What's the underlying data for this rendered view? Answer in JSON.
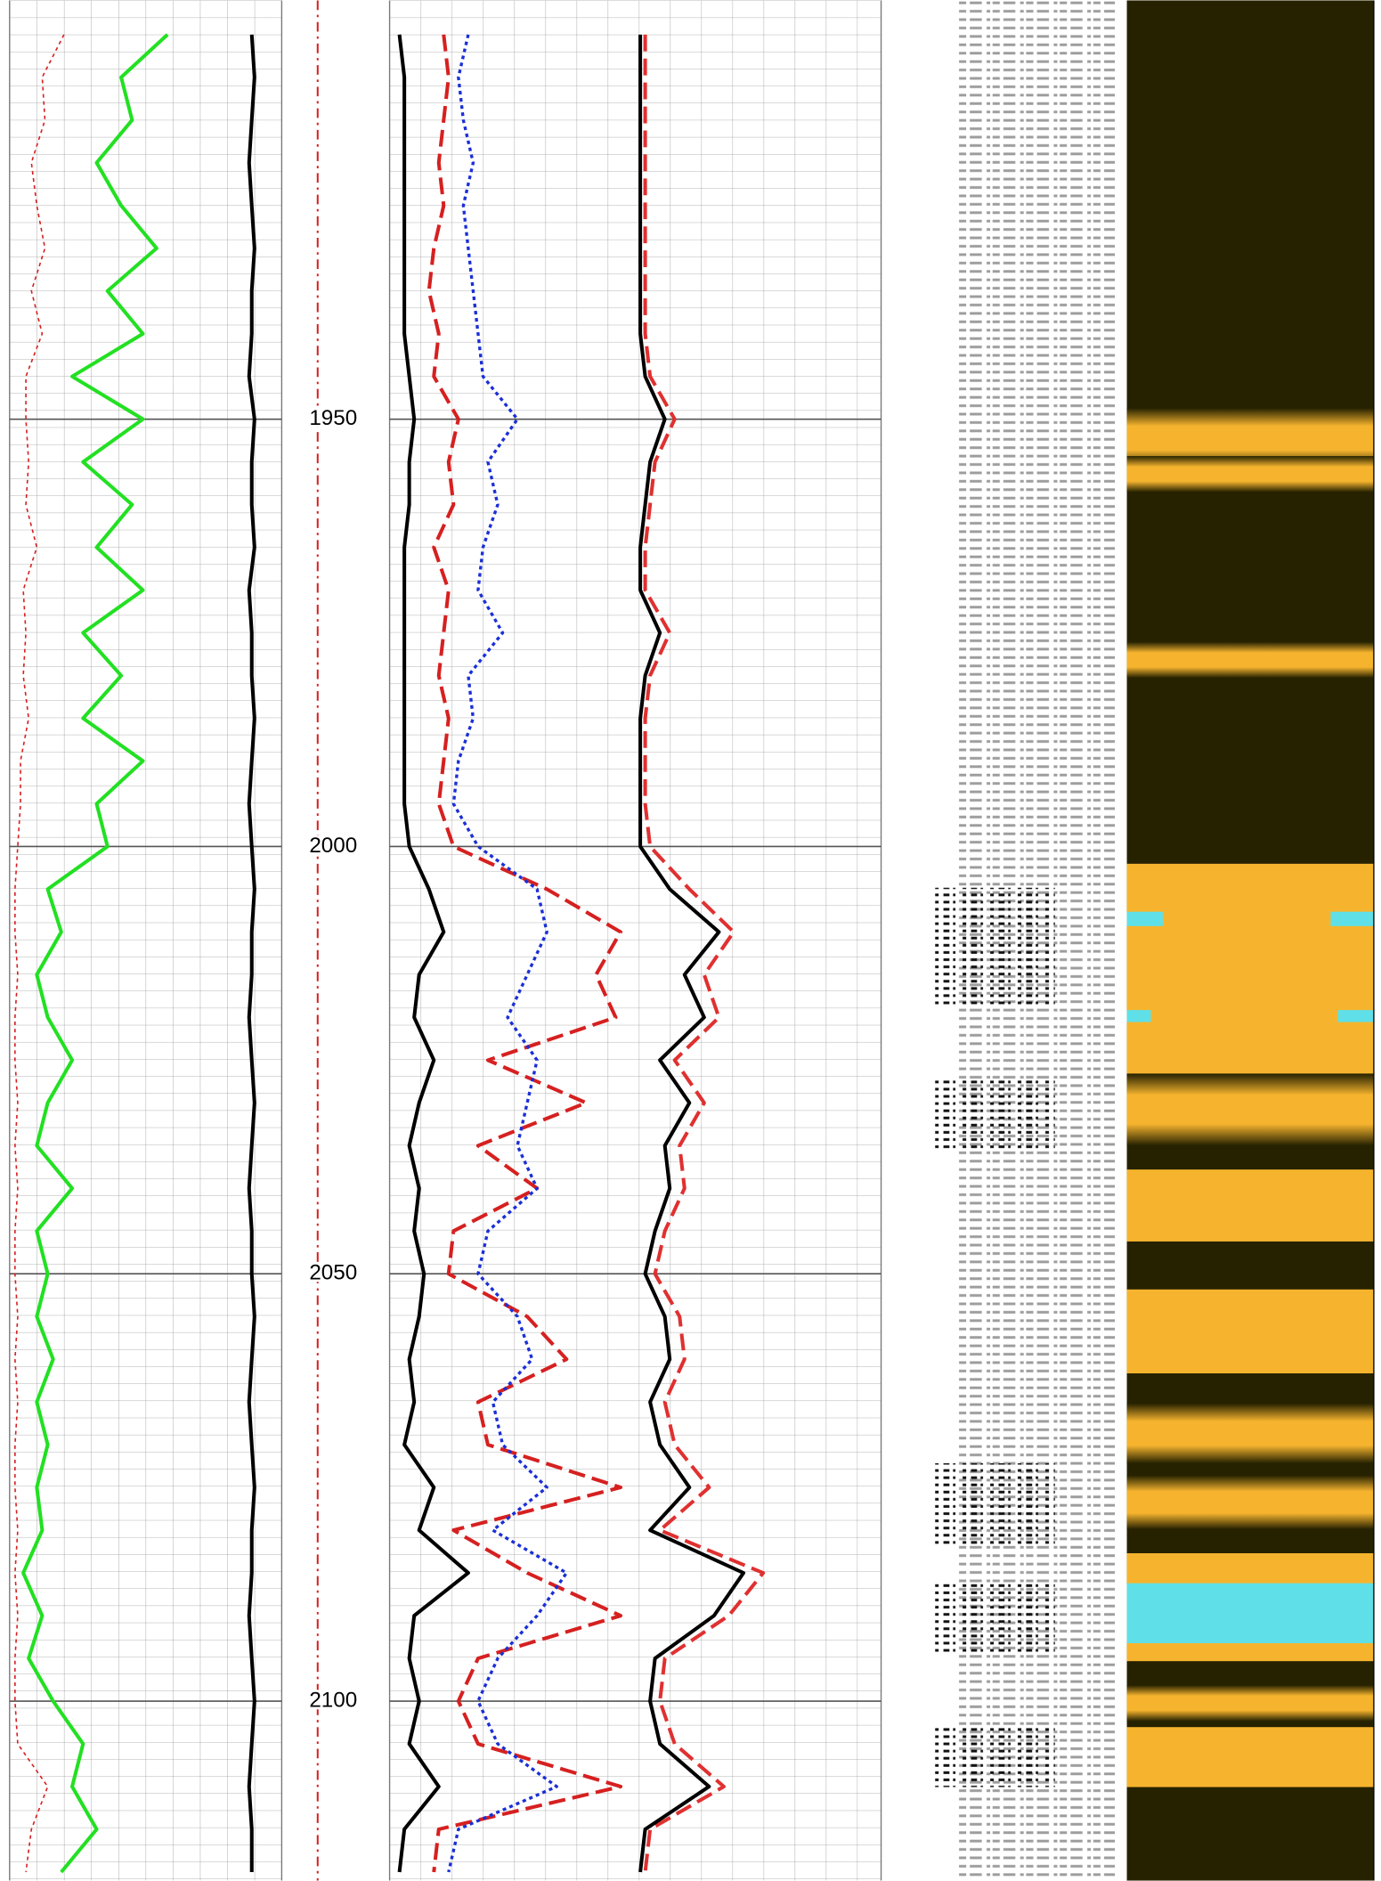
{
  "chart_data": {
    "type": "well-log",
    "ylim": [
      1901,
      2121
    ],
    "yticks": [
      1900,
      1950,
      2000,
      2050,
      2100
    ],
    "grid": true,
    "tracks": [
      {
        "xlim": [
          0,
          100
        ]
      },
      {
        "xlim": [
          0,
          100
        ]
      }
    ],
    "y": [
      1905,
      1910,
      1915,
      1920,
      1925,
      1930,
      1935,
      1940,
      1945,
      1950,
      1955,
      1960,
      1965,
      1970,
      1975,
      1980,
      1985,
      1990,
      1995,
      2000,
      2005,
      2010,
      2015,
      2020,
      2025,
      2030,
      2035,
      2040,
      2045,
      2050,
      2055,
      2060,
      2065,
      2070,
      2075,
      2080,
      2085,
      2090,
      2095,
      2100,
      2105,
      2110,
      2115,
      2120
    ],
    "series": [
      {
        "track": 0,
        "color": "#d62020",
        "style": "dotted",
        "width": 1.2,
        "values": [
          20,
          12,
          13,
          8,
          10,
          13,
          8,
          12,
          6,
          6,
          7,
          6,
          10,
          5,
          6,
          5,
          7,
          4,
          4,
          3,
          2,
          2,
          3,
          2,
          2,
          3,
          2,
          3,
          2,
          2,
          3,
          2,
          3,
          2,
          2,
          3,
          2,
          3,
          2,
          2,
          3,
          14,
          8,
          6
        ]
      },
      {
        "track": 0,
        "color": "#22e022",
        "style": "solid",
        "width": 3,
        "values": [
          58,
          41,
          45,
          32,
          41,
          54,
          36,
          49,
          23,
          49,
          27,
          45,
          32,
          49,
          27,
          41,
          27,
          49,
          32,
          36,
          14,
          19,
          10,
          14,
          23,
          14,
          10,
          23,
          10,
          14,
          10,
          16,
          10,
          14,
          10,
          12,
          5,
          12,
          7,
          16,
          27,
          23,
          32,
          19
        ]
      },
      {
        "track": 0,
        "color": "#000000",
        "style": "solid",
        "width": 3,
        "values": [
          89,
          90,
          89,
          88,
          89,
          90,
          89,
          89,
          88,
          90,
          89,
          89,
          90,
          88,
          89,
          89,
          90,
          89,
          88,
          89,
          90,
          89,
          89,
          88,
          89,
          90,
          89,
          88,
          89,
          89,
          90,
          89,
          88,
          89,
          90,
          89,
          89,
          88,
          89,
          90,
          89,
          88,
          89,
          89
        ]
      },
      {
        "track": 1,
        "color": "#000000",
        "style": "solid",
        "width": 3,
        "values": [
          2,
          3,
          3,
          3,
          3,
          3,
          3,
          3,
          4,
          5,
          4,
          4,
          3,
          3,
          3,
          3,
          3,
          3,
          3,
          4,
          8,
          11,
          6,
          5,
          9,
          6,
          4,
          6,
          5,
          7,
          6,
          4,
          5,
          3,
          9,
          6,
          16,
          5,
          4,
          6,
          4,
          10,
          3,
          2
        ]
      },
      {
        "track": 1,
        "color": "#d62020",
        "style": "dashed",
        "width": 3,
        "values": [
          11,
          12,
          11,
          10,
          11,
          9,
          8,
          10,
          9,
          14,
          12,
          13,
          9,
          12,
          11,
          10,
          12,
          11,
          10,
          13,
          32,
          47,
          42,
          46,
          20,
          40,
          18,
          30,
          13,
          12,
          28,
          36,
          18,
          20,
          47,
          13,
          28,
          47,
          18,
          14,
          18,
          47,
          10,
          9
        ]
      },
      {
        "track": 1,
        "color": "#1a2fd6",
        "style": "dotted",
        "width": 2.5,
        "values": [
          16,
          14,
          15,
          17,
          15,
          16,
          17,
          18,
          19,
          26,
          20,
          22,
          19,
          18,
          23,
          16,
          17,
          14,
          13,
          18,
          30,
          32,
          28,
          24,
          30,
          28,
          26,
          30,
          20,
          18,
          26,
          29,
          21,
          23,
          32,
          21,
          36,
          30,
          22,
          18,
          22,
          34,
          14,
          12
        ]
      },
      {
        "track": 1,
        "color": "#e03030",
        "style": "dashed",
        "width": 3,
        "values": [
          52,
          52,
          52,
          52,
          52,
          52,
          52,
          52,
          53,
          58,
          54,
          53,
          52,
          52,
          57,
          53,
          52,
          52,
          52,
          53,
          61,
          70,
          64,
          67,
          58,
          64,
          59,
          60,
          56,
          54,
          59,
          60,
          56,
          58,
          65,
          55,
          76,
          69,
          56,
          55,
          58,
          68,
          53,
          52
        ]
      },
      {
        "track": 1,
        "color": "#000000",
        "style": "solid",
        "width": 3,
        "values": [
          51,
          51,
          51,
          51,
          51,
          51,
          51,
          51,
          52,
          56,
          53,
          52,
          51,
          51,
          55,
          52,
          51,
          51,
          51,
          51,
          57,
          67,
          60,
          64,
          55,
          61,
          56,
          57,
          54,
          52,
          56,
          57,
          53,
          55,
          61,
          53,
          72,
          66,
          54,
          53,
          55,
          65,
          52,
          51
        ]
      }
    ]
  }
}
